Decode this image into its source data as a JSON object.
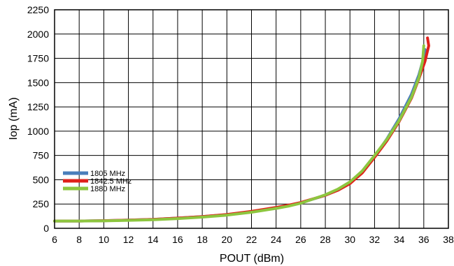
{
  "chart_data": {
    "type": "line",
    "xlabel": "POUT (dBm)",
    "ylabel": "Iop (mA)",
    "xlim": [
      6,
      38
    ],
    "ylim": [
      0,
      2250
    ],
    "xticks": [
      "6",
      "8",
      "10",
      "12",
      "14",
      "16",
      "18",
      "20",
      "22",
      "24",
      "26",
      "28",
      "30",
      "32",
      "34",
      "36",
      "38"
    ],
    "yticks": [
      "0",
      "250",
      "500",
      "750",
      "1000",
      "1250",
      "1500",
      "1750",
      "2000",
      "2250"
    ],
    "grid": true,
    "legend_position": "center-left",
    "series": [
      {
        "name": "1805 MHz",
        "color": "#4a7ebb",
        "points": [
          [
            6,
            75
          ],
          [
            8,
            75
          ],
          [
            10,
            78
          ],
          [
            12,
            85
          ],
          [
            14,
            92
          ],
          [
            16,
            105
          ],
          [
            18,
            120
          ],
          [
            20,
            140
          ],
          [
            22,
            172
          ],
          [
            24,
            210
          ],
          [
            25,
            232
          ],
          [
            26,
            262
          ],
          [
            28,
            340
          ],
          [
            29,
            395
          ],
          [
            30,
            470
          ],
          [
            31,
            580
          ],
          [
            32,
            740
          ],
          [
            33,
            920
          ],
          [
            34,
            1130
          ],
          [
            35,
            1380
          ],
          [
            35.6,
            1580
          ],
          [
            36.0,
            1760
          ],
          [
            36.1,
            1840
          ]
        ]
      },
      {
        "name": "1842.5 MHz",
        "color": "#e0201a",
        "points": [
          [
            6,
            75
          ],
          [
            8,
            75
          ],
          [
            10,
            78
          ],
          [
            12,
            85
          ],
          [
            14,
            92
          ],
          [
            16,
            105
          ],
          [
            18,
            120
          ],
          [
            20,
            142
          ],
          [
            22,
            175
          ],
          [
            24,
            215
          ],
          [
            25,
            238
          ],
          [
            26,
            265
          ],
          [
            28,
            340
          ],
          [
            29,
            390
          ],
          [
            30,
            460
          ],
          [
            31,
            570
          ],
          [
            32,
            730
          ],
          [
            33,
            900
          ],
          [
            34,
            1100
          ],
          [
            35,
            1340
          ],
          [
            35.6,
            1540
          ],
          [
            36.1,
            1720
          ],
          [
            36.4,
            1880
          ],
          [
            36.3,
            1960
          ]
        ]
      },
      {
        "name": "1880 MHz",
        "color": "#8dc63f",
        "points": [
          [
            6,
            75
          ],
          [
            8,
            75
          ],
          [
            10,
            76
          ],
          [
            12,
            82
          ],
          [
            14,
            88
          ],
          [
            16,
            100
          ],
          [
            18,
            115
          ],
          [
            20,
            135
          ],
          [
            22,
            165
          ],
          [
            24,
            205
          ],
          [
            25,
            228
          ],
          [
            26,
            258
          ],
          [
            28,
            345
          ],
          [
            29,
            402
          ],
          [
            30,
            478
          ],
          [
            31,
            590
          ],
          [
            32,
            750
          ],
          [
            33,
            915
          ],
          [
            34,
            1110
          ],
          [
            35,
            1350
          ],
          [
            35.6,
            1550
          ],
          [
            35.9,
            1720
          ],
          [
            36.0,
            1880
          ]
        ]
      }
    ]
  }
}
